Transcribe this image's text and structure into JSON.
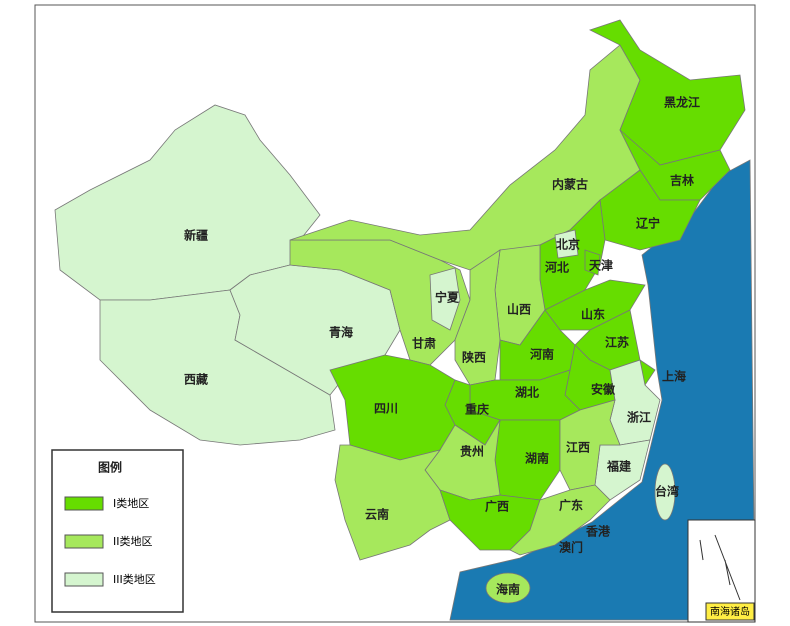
{
  "legend": {
    "title": "图例",
    "items": [
      {
        "label": "I类地区",
        "color": "#66dd00"
      },
      {
        "label": "II类地区",
        "color": "#a6e85c"
      },
      {
        "label": "III类地区",
        "color": "#d5f5cf"
      }
    ]
  },
  "regions": [
    {
      "name": "新疆",
      "color": "#d5f5cf"
    },
    {
      "name": "西藏",
      "color": "#d5f5cf"
    },
    {
      "name": "青海",
      "color": "#d5f5cf"
    },
    {
      "name": "甘肃",
      "color": "#a6e85c"
    },
    {
      "name": "内蒙古",
      "color": "#a6e85c"
    },
    {
      "name": "黑龙江",
      "color": "#66dd00"
    },
    {
      "name": "吉林",
      "color": "#66dd00"
    },
    {
      "name": "辽宁",
      "color": "#66dd00"
    },
    {
      "name": "河北",
      "color": "#66dd00"
    },
    {
      "name": "北京",
      "color": "#d5f5cf"
    },
    {
      "name": "天津",
      "color": "#66dd00"
    },
    {
      "name": "山西",
      "color": "#a6e85c"
    },
    {
      "name": "宁夏",
      "color": "#d5f5cf"
    },
    {
      "name": "陕西",
      "color": "#a6e85c"
    },
    {
      "name": "山东",
      "color": "#66dd00"
    },
    {
      "name": "河南",
      "color": "#66dd00"
    },
    {
      "name": "江苏",
      "color": "#66dd00"
    },
    {
      "name": "安徽",
      "color": "#66dd00"
    },
    {
      "name": "上海",
      "color": "#66dd00"
    },
    {
      "name": "浙江",
      "color": "#d5f5cf"
    },
    {
      "name": "福建",
      "color": "#d5f5cf"
    },
    {
      "name": "湖北",
      "color": "#66dd00"
    },
    {
      "name": "重庆",
      "color": "#66dd00"
    },
    {
      "name": "四川",
      "color": "#66dd00"
    },
    {
      "name": "湖南",
      "color": "#66dd00"
    },
    {
      "name": "江西",
      "color": "#a6e85c"
    },
    {
      "name": "贵州",
      "color": "#a6e85c"
    },
    {
      "name": "云南",
      "color": "#a6e85c"
    },
    {
      "name": "广西",
      "color": "#66dd00"
    },
    {
      "name": "广东",
      "color": "#a6e85c"
    },
    {
      "name": "香港",
      "color": "#a6e85c"
    },
    {
      "name": "澳门",
      "color": "#a6e85c"
    },
    {
      "name": "海南",
      "color": "#a6e85c"
    },
    {
      "name": "台湾",
      "color": "#d5f5cf"
    }
  ],
  "inset": {
    "label": "南海诸岛"
  }
}
